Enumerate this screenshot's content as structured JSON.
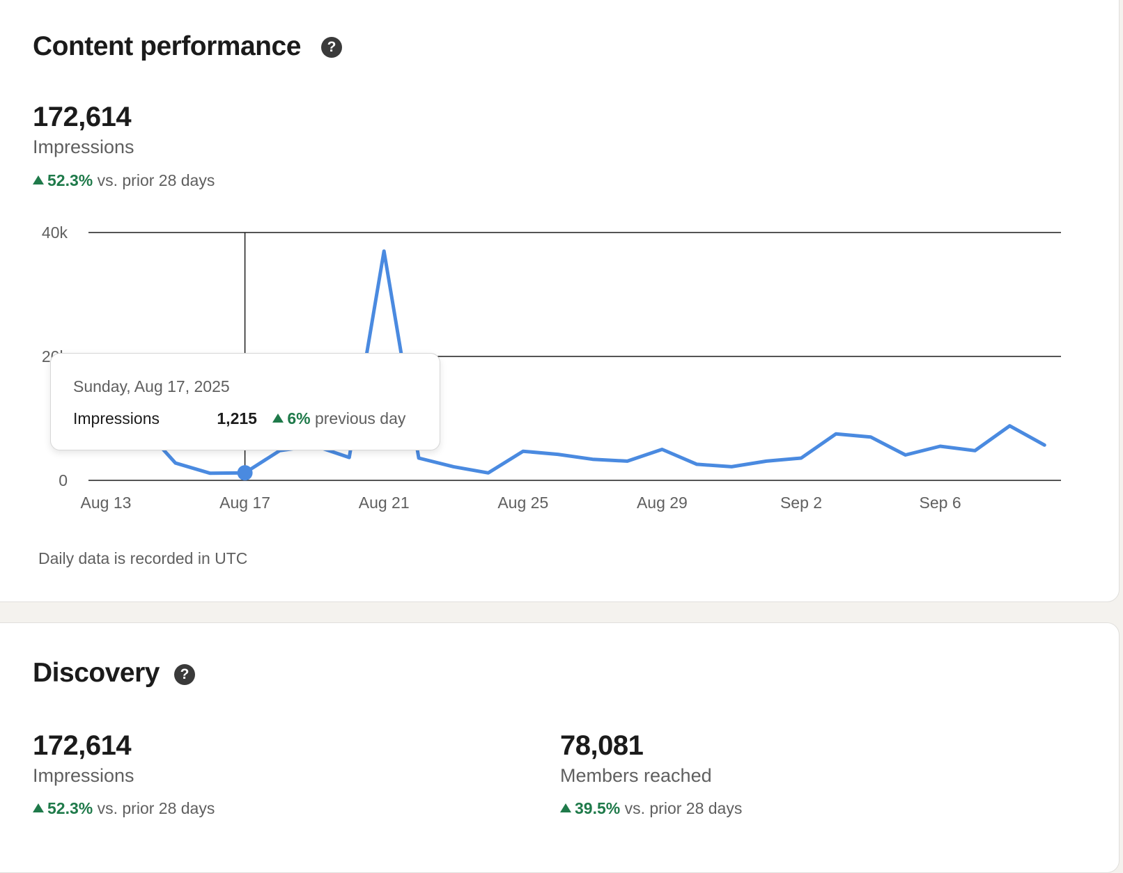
{
  "content_performance": {
    "title": "Content performance",
    "help_icon": "question-mark-circle-icon",
    "metric": {
      "value": "172,614",
      "label": "Impressions",
      "change": "52.3%",
      "change_suffix": "vs. prior 28 days"
    },
    "footnote": "Daily data is recorded in UTC"
  },
  "tooltip": {
    "date": "Sunday, Aug 17, 2025",
    "label": "Impressions",
    "value": "1,215",
    "change": "6%",
    "change_suffix": "previous day"
  },
  "chart_data": {
    "type": "line",
    "ylim": [
      0,
      40000
    ],
    "y_ticks": [
      "0",
      "20k",
      "40k"
    ],
    "x_ticks": [
      "Aug 13",
      "Aug 17",
      "Aug 21",
      "Aug 25",
      "Aug 29",
      "Sep 2",
      "Sep 6"
    ],
    "series": [
      {
        "values": [
          20000,
          9000,
          2800,
          1150,
          1215,
          4800,
          5600,
          3700,
          37000,
          3600,
          2200,
          1200,
          4700,
          4200,
          3400,
          3100,
          5000,
          2600,
          2200,
          3100,
          3600,
          7500,
          7000,
          4100,
          5500,
          4800,
          8800,
          5700
        ],
        "color": "#4a8ae0"
      }
    ],
    "highlight_label": "Aug 17",
    "grid": true
  },
  "discovery": {
    "title": "Discovery",
    "help_icon": "question-mark-circle-icon",
    "metrics": [
      {
        "value": "172,614",
        "label": "Impressions",
        "change": "52.3%",
        "change_suffix": "vs. prior 28 days"
      },
      {
        "value": "78,081",
        "label": "Members reached",
        "change": "39.5%",
        "change_suffix": "vs. prior 28 days"
      }
    ]
  },
  "colors": {
    "accent_line": "#4a8ae0",
    "positive": "#1f7a4a",
    "page_bg": "#f4f2ee"
  }
}
